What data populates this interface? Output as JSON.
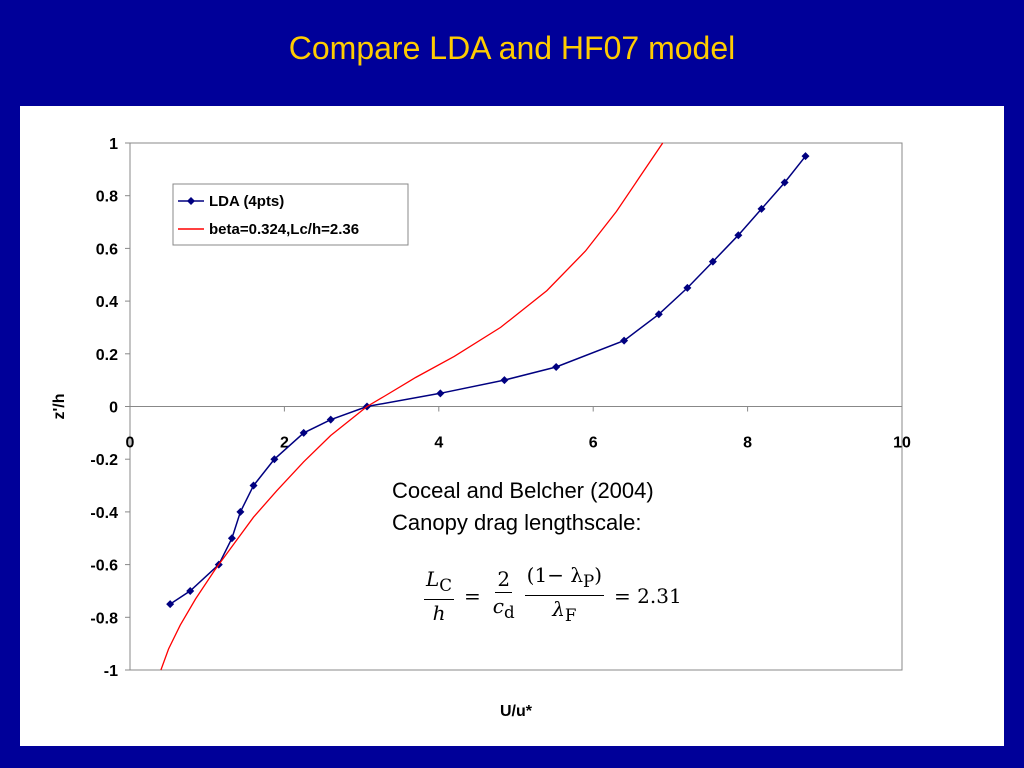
{
  "slide": {
    "title": "Compare LDA and HF07 model"
  },
  "annotation": {
    "line1": "Coceal and Belcher (2004)",
    "line2": "Canopy drag lengthscale:",
    "formula": {
      "lhs_num": "L",
      "lhs_num_sub": "C",
      "lhs_den": "h",
      "c_num": "2",
      "c_den": "c",
      "c_den_sub": "d",
      "lam_num": "(1− λ",
      "lam_num_sub": "P",
      "lam_num_close": ")",
      "lam_den": "λ",
      "lam_den_sub": "F",
      "result": "= 2.31"
    }
  },
  "chart_data": {
    "type": "line",
    "xlabel": "U/u*",
    "ylabel": "z'/h",
    "xlim": [
      0,
      10
    ],
    "ylim": [
      -1,
      1
    ],
    "x_ticks": [
      "0",
      "2",
      "4",
      "6",
      "8",
      "10"
    ],
    "y_ticks": [
      "1",
      "0.8",
      "0.6",
      "0.4",
      "0.2",
      "0",
      "-0.2",
      "-0.4",
      "-0.6",
      "-0.8",
      "-1"
    ],
    "grid": false,
    "legend_position": "top-left",
    "series": [
      {
        "name": "LDA (4pts)",
        "color": "#000080",
        "marker": "diamond",
        "x": [
          0.52,
          0.78,
          1.15,
          1.32,
          1.43,
          1.6,
          1.87,
          2.25,
          2.6,
          3.07,
          4.02,
          4.85,
          5.52,
          6.4,
          6.85,
          7.22,
          7.55,
          7.88,
          8.18,
          8.48,
          8.75
        ],
        "y": [
          -0.75,
          -0.7,
          -0.6,
          -0.5,
          -0.4,
          -0.3,
          -0.2,
          -0.1,
          -0.05,
          0,
          0.05,
          0.1,
          0.15,
          0.25,
          0.35,
          0.45,
          0.55,
          0.65,
          0.75,
          0.85,
          0.95
        ]
      },
      {
        "name": "beta=0.324,Lc/h=2.36",
        "color": "#FF0000",
        "marker": "none",
        "x": [
          0.4,
          0.5,
          0.65,
          0.85,
          1.1,
          1.35,
          1.6,
          1.9,
          2.25,
          2.6,
          2.9,
          3.07,
          3.3,
          3.7,
          4.2,
          4.8,
          5.4,
          5.9,
          6.3,
          6.6,
          6.9
        ],
        "y": [
          -1.0,
          -0.92,
          -0.83,
          -0.73,
          -0.62,
          -0.52,
          -0.42,
          -0.32,
          -0.21,
          -0.11,
          -0.04,
          0,
          0.04,
          0.11,
          0.19,
          0.3,
          0.44,
          0.59,
          0.74,
          0.87,
          1.0
        ]
      }
    ]
  }
}
